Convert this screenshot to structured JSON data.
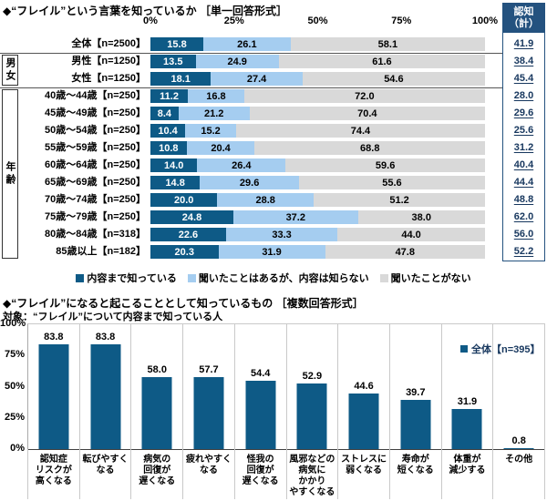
{
  "chart_data": [
    {
      "type": "bar",
      "orientation": "horizontal",
      "stacked": true,
      "title": "◆“フレイル”という言葉を知っているか ［単一回答形式］",
      "x_ticks": [
        "0%",
        "25%",
        "50%",
        "75%",
        "100%"
      ],
      "xlim": [
        0,
        100
      ],
      "categories": [
        "全体【n=2500】",
        "男性【n=1250】",
        "女性【n=1250】",
        "40歳～44歳【n=250】",
        "45歳～49歳【n=250】",
        "50歳～54歳【n=250】",
        "55歳～59歳【n=250】",
        "60歳～64歳【n=250】",
        "65歳～69歳【n=250】",
        "70歳～74歳【n=250】",
        "75歳～79歳【n=250】",
        "80歳～84歳【n=318】",
        "85歳以上【n=182】"
      ],
      "series": [
        {
          "name": "内容まで知っている",
          "color": "#0E5A86",
          "values": [
            15.8,
            13.5,
            18.1,
            11.2,
            8.4,
            10.4,
            10.8,
            14.0,
            14.8,
            20.0,
            24.8,
            22.6,
            20.3
          ]
        },
        {
          "name": "聞いたことはあるが、内容は知らない",
          "color": "#A5CDF0",
          "values": [
            26.1,
            24.9,
            27.4,
            16.8,
            21.2,
            15.2,
            20.4,
            26.4,
            29.6,
            28.8,
            37.2,
            33.3,
            31.9
          ]
        },
        {
          "name": "聞いたことがない",
          "color": "#D9D9D9",
          "values": [
            58.1,
            61.6,
            54.6,
            72.0,
            70.4,
            74.4,
            68.8,
            59.6,
            55.6,
            51.2,
            38.0,
            44.0,
            47.8
          ]
        }
      ],
      "totals_column": {
        "header": "認知（計）",
        "header_lines": [
          "認知",
          "（計）"
        ],
        "values": [
          41.9,
          38.4,
          45.4,
          28.0,
          29.6,
          25.6,
          31.2,
          40.4,
          44.4,
          48.8,
          62.0,
          56.0,
          52.2
        ]
      },
      "row_groups": [
        {
          "label": "男女",
          "from": 1,
          "to": 2
        },
        {
          "label": "年齢",
          "from": 3,
          "to": 12
        }
      ],
      "legend_position": "bottom"
    },
    {
      "type": "bar",
      "orientation": "vertical",
      "title": "◆“フレイル”になると起こることとして知っているもの ［複数回答形式］",
      "subtitle": "対象：“フレイル”について内容まで知っている人",
      "legend": "全体【n=395】",
      "bar_color": "#0E5A86",
      "y_ticks": [
        "100%",
        "75%",
        "50%",
        "25%",
        "0%"
      ],
      "ylim": [
        0,
        100
      ],
      "categories": [
        "認知症\nリスクが\n高くなる",
        "転びやすく\nなる",
        "病気の\n回復が\n遅くなる",
        "疲れやすく\nなる",
        "怪我の\n回復が\n遅くなる",
        "風邪などの\n病気に\nかかり\nやすくなる",
        "ストレスに\n弱くなる",
        "寿命が\n短くなる",
        "体重が\n減少する",
        "その他"
      ],
      "values": [
        83.8,
        83.8,
        58.0,
        57.7,
        54.4,
        52.9,
        44.6,
        39.7,
        31.9,
        0.8
      ]
    }
  ]
}
